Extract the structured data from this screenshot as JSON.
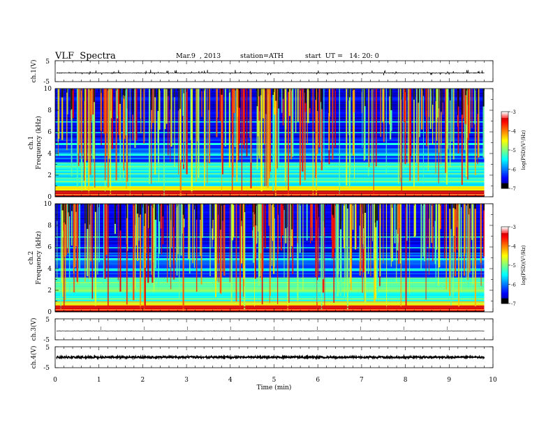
{
  "header": {
    "title": "VLF  Spectra",
    "date": "Mar.9  , 2013",
    "station": "station=ATH",
    "start": "start  UT =   14: 20: 0"
  },
  "chart_data": [
    {
      "type": "line",
      "panel": "ch1-waveform",
      "ylabel": "ch.1(V)",
      "ylim": [
        -5,
        5
      ],
      "yticks": [
        "5",
        "-5"
      ],
      "xlim": [
        0,
        10
      ]
    },
    {
      "type": "heatmap",
      "panel": "ch1-spectrogram",
      "ylabel": "Frequency  (kHz)",
      "channel_label": "ch.1",
      "ylim": [
        0,
        10
      ],
      "yticks": [
        "0",
        "2",
        "4",
        "6",
        "8",
        "10"
      ],
      "xlim": [
        0,
        9.8
      ],
      "colorbar": {
        "label": "log(PSD)(V²/Hz)",
        "range": [
          -7,
          -3
        ],
        "ticks": [
          "-3",
          "-4",
          "-5",
          "-6",
          "-7"
        ]
      }
    },
    {
      "type": "heatmap",
      "panel": "ch2-spectrogram",
      "ylabel": "Frequency  (kHz)",
      "channel_label": "ch.2",
      "ylim": [
        0,
        10
      ],
      "yticks": [
        "0",
        "2",
        "4",
        "6",
        "8",
        "10"
      ],
      "xlim": [
        0,
        9.8
      ],
      "colorbar": {
        "label": "log(PSD)(V²/Hz)",
        "range": [
          -7,
          -3
        ],
        "ticks": [
          "-3",
          "-4",
          "-5",
          "-6",
          "-7"
        ]
      }
    },
    {
      "type": "line",
      "panel": "ch3-waveform",
      "ylabel": "ch.3(V)",
      "ylim": [
        -5,
        5
      ],
      "yticks": [
        "5",
        "-5"
      ],
      "xlim": [
        0,
        10
      ]
    },
    {
      "type": "line",
      "panel": "ch4-waveform",
      "ylabel": "ch.4(V)",
      "ylim": [
        -5,
        5
      ],
      "yticks": [
        "5",
        "-5"
      ],
      "xlim": [
        0,
        10
      ],
      "xlabel": "Time  (min)",
      "xticks": [
        "0",
        "1",
        "2",
        "3",
        "4",
        "5",
        "6",
        "7",
        "8",
        "9",
        "10"
      ]
    }
  ]
}
